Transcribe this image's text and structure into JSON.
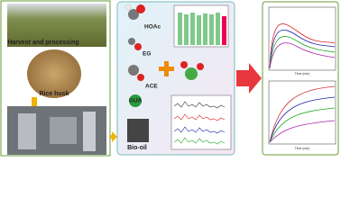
{
  "left_panel": {
    "harvest_label": "Harvest and processing",
    "husk_label": "Rice husk"
  },
  "middle_panel": {
    "molecules": [
      "HOAc",
      "EG",
      "ACE",
      "GUA"
    ],
    "bio_oil_label": "Bio-oil"
  },
  "right_panel": {
    "x_axis_label": "Time (min)"
  }
}
